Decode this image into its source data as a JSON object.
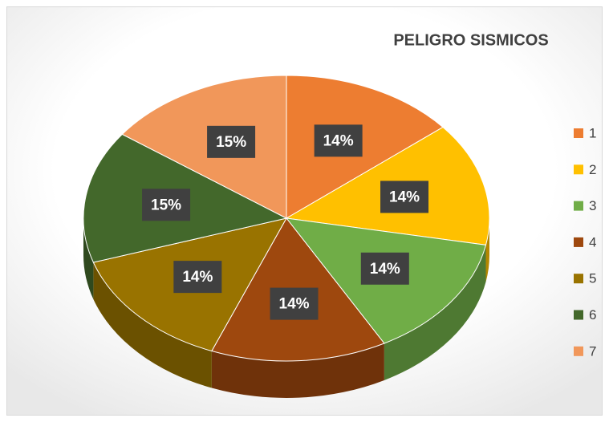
{
  "chart_data": {
    "type": "pie",
    "title": "PELIGRO SISMICOS",
    "categories": [
      "1",
      "2",
      "3",
      "4",
      "5",
      "6",
      "7"
    ],
    "values": [
      14,
      14,
      14,
      14,
      14,
      15,
      15
    ],
    "value_labels": [
      "14%",
      "14%",
      "14%",
      "14%",
      "14%",
      "15%",
      "15%"
    ],
    "colors": [
      "#ED7D31",
      "#FFC000",
      "#70AD47",
      "#9E480E",
      "#997300",
      "#43682B",
      "#F1975A"
    ],
    "legend": "right"
  }
}
